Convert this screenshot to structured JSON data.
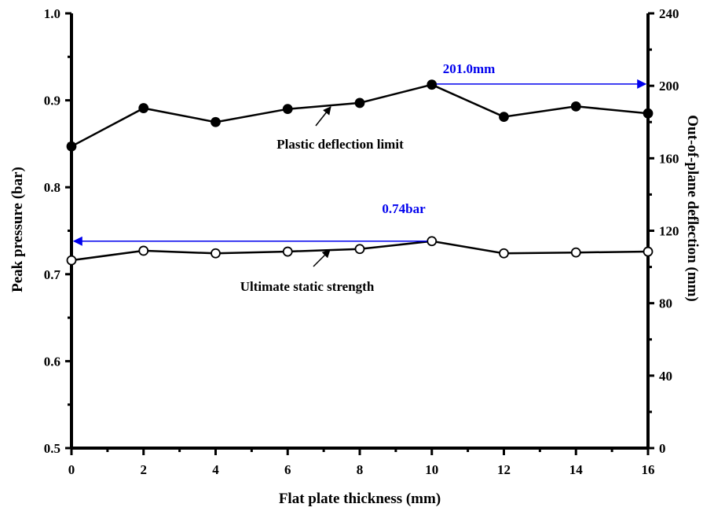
{
  "chart_data": {
    "type": "line",
    "xlabel": "Flat plate thickness (mm)",
    "ylabel": "Peak pressure (bar)",
    "y2label": "Out-of-plane deflection (mm)",
    "x": [
      0,
      2,
      4,
      6,
      8,
      10,
      12,
      14,
      16
    ],
    "xlim": [
      0,
      16
    ],
    "ylim": [
      0.5,
      1.0
    ],
    "y2lim": [
      0,
      240
    ],
    "x_ticks": [
      "0",
      "2",
      "4",
      "6",
      "8",
      "10",
      "12",
      "14",
      "16"
    ],
    "y_ticks": [
      "0.5",
      "0.6",
      "0.7",
      "0.8",
      "0.9",
      "1.0"
    ],
    "y2_ticks": [
      "0",
      "40",
      "80",
      "120",
      "160",
      "200",
      "240"
    ],
    "grid": false,
    "series": [
      {
        "name": "Plastic deflection limit",
        "axis": "left",
        "marker": "filled-circle",
        "color": "#000000",
        "values": [
          0.847,
          0.891,
          0.875,
          0.89,
          0.897,
          0.918,
          0.881,
          0.893,
          0.885
        ]
      },
      {
        "name": "Ultimate static strength",
        "axis": "left",
        "marker": "open-circle",
        "color": "#000000",
        "values": [
          0.716,
          0.727,
          0.724,
          0.726,
          0.729,
          0.738,
          0.724,
          0.725,
          0.726
        ]
      }
    ],
    "annotations": {
      "max_deflection": {
        "label": "201.0mm",
        "x": 10,
        "y2": 201.0,
        "color": "#0000ee"
      },
      "max_pressure": {
        "label": "0.74bar",
        "x": 10,
        "y": 0.738,
        "color": "#0000ee"
      }
    }
  }
}
